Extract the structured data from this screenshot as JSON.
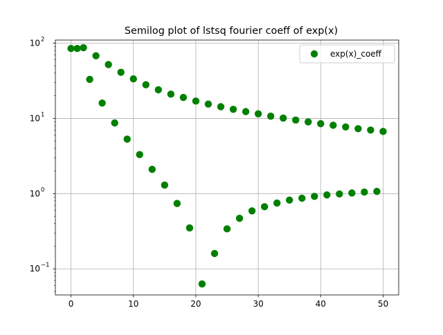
{
  "chart_data": {
    "type": "scatter",
    "title": "Semilog plot of lstsq fourier coeff of exp(x)",
    "xlabel": "",
    "ylabel": "",
    "x_scale": "linear",
    "y_scale": "log",
    "xlim": [
      -2.5,
      52.5
    ],
    "ylim": [
      0.045,
      110
    ],
    "grid": true,
    "legend_position": "top-right",
    "x_ticks": [
      0,
      10,
      20,
      30,
      40,
      50
    ],
    "x_tick_labels": [
      "0",
      "10",
      "20",
      "30",
      "40",
      "50"
    ],
    "y_ticks": [
      0.1,
      1,
      10,
      100
    ],
    "y_tick_labels": [
      {
        "base": "10",
        "exp": "−1"
      },
      {
        "base": "10",
        "exp": "0"
      },
      {
        "base": "10",
        "exp": "1"
      },
      {
        "base": "10",
        "exp": "2"
      }
    ],
    "series": [
      {
        "name": "exp(x)_coeff",
        "color": "#008000",
        "marker": "circle",
        "points": [
          [
            0,
            85
          ],
          [
            1,
            85
          ],
          [
            2,
            87
          ],
          [
            3,
            33
          ],
          [
            4,
            68
          ],
          [
            5,
            16
          ],
          [
            6,
            52
          ],
          [
            7,
            8.7
          ],
          [
            8,
            41
          ],
          [
            9,
            5.3
          ],
          [
            10,
            33.5
          ],
          [
            11,
            3.3
          ],
          [
            12,
            28
          ],
          [
            13,
            2.1
          ],
          [
            14,
            24
          ],
          [
            15,
            1.3
          ],
          [
            16,
            21
          ],
          [
            17,
            0.74
          ],
          [
            18,
            19
          ],
          [
            19,
            0.35
          ],
          [
            20,
            17
          ],
          [
            21,
            0.063
          ],
          [
            22,
            15.5
          ],
          [
            23,
            0.16
          ],
          [
            24,
            14.3
          ],
          [
            25,
            0.34
          ],
          [
            26,
            13.2
          ],
          [
            27,
            0.47
          ],
          [
            28,
            12.3
          ],
          [
            29,
            0.59
          ],
          [
            30,
            11.5
          ],
          [
            31,
            0.67
          ],
          [
            32,
            10.7
          ],
          [
            33,
            0.75
          ],
          [
            34,
            10.1
          ],
          [
            35,
            0.82
          ],
          [
            36,
            9.5
          ],
          [
            37,
            0.87
          ],
          [
            38,
            9.0
          ],
          [
            39,
            0.92
          ],
          [
            40,
            8.5
          ],
          [
            41,
            0.96
          ],
          [
            42,
            8.1
          ],
          [
            43,
            0.99
          ],
          [
            44,
            7.7
          ],
          [
            45,
            1.02
          ],
          [
            46,
            7.3
          ],
          [
            47,
            1.05
          ],
          [
            48,
            7.0
          ],
          [
            49,
            1.07
          ],
          [
            50,
            6.7
          ]
        ]
      }
    ]
  }
}
